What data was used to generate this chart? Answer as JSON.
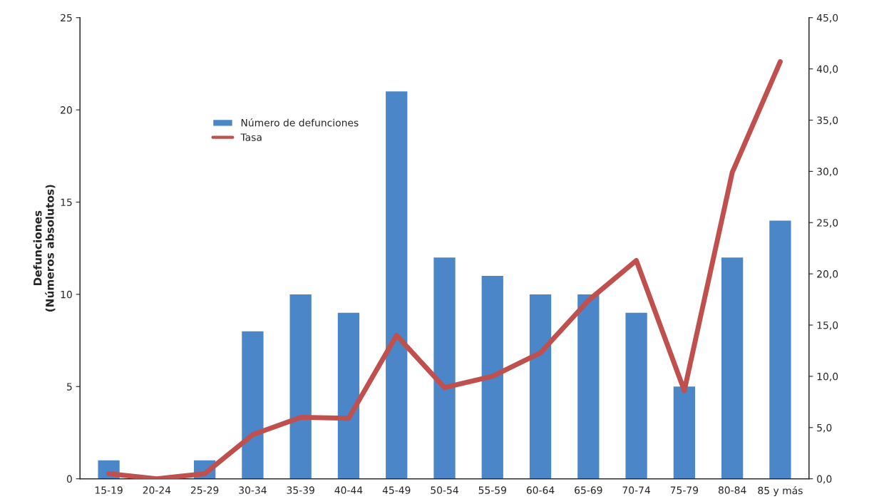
{
  "chart_data": {
    "type": "bar",
    "ylabel": "Defunciones\n(Números absolutos)",
    "categories": [
      "15-19",
      "20-24",
      "25-29",
      "30-34",
      "35-39",
      "40-44",
      "45-49",
      "50-54",
      "55-59",
      "60-64",
      "65-69",
      "70-74",
      "75-79",
      "80-84",
      "85 y más"
    ],
    "series": [
      {
        "name": "Número de defunciones",
        "color": "#4a86c8",
        "values": [
          1,
          0,
          1,
          8,
          10,
          9,
          21,
          12,
          11,
          10,
          10,
          9,
          5,
          12,
          14
        ]
      },
      {
        "name": "Tasa",
        "type": "line",
        "axis": "y2",
        "color": "#c0504d",
        "values": [
          0.5,
          0,
          0.5,
          4.3,
          6.0,
          5.9,
          14.0,
          8.9,
          10.0,
          12.3,
          17.4,
          21.3,
          8.6,
          29.9,
          40.7
        ]
      }
    ],
    "ylim": [
      0,
      25
    ],
    "yticks": [
      0,
      5,
      10,
      15,
      20,
      25
    ],
    "y2lim": [
      0,
      45
    ],
    "y2ticks": [
      {
        "value": 0,
        "label": "0,0"
      },
      {
        "value": 5,
        "label": "5,0"
      },
      {
        "value": 10,
        "label": "10,0"
      },
      {
        "value": 15,
        "label": "15,0"
      },
      {
        "value": 20,
        "label": "20,0"
      },
      {
        "value": 25,
        "label": "25,0"
      },
      {
        "value": 30,
        "label": "30,0"
      },
      {
        "value": 35,
        "label": "35,0"
      },
      {
        "value": 40,
        "label": "40,0"
      },
      {
        "value": 45,
        "label": "45,0"
      }
    ],
    "grid": false,
    "legend": "top left"
  }
}
